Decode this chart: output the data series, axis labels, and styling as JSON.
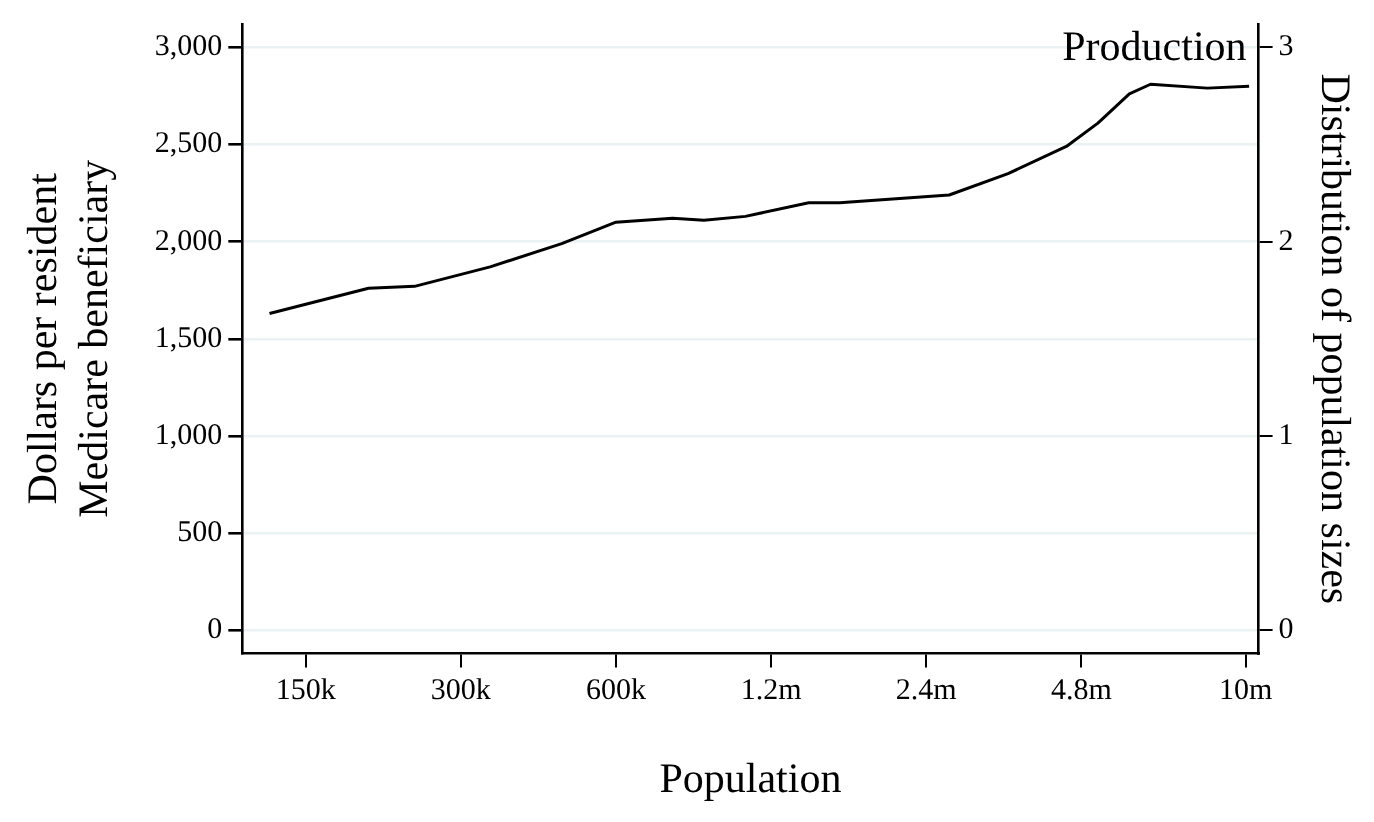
{
  "chart_data": {
    "type": "line",
    "title": "Production",
    "xlabel": "Population",
    "ylabel": "Dollars per resident\nMedicare beneficiary",
    "y2label": "Distribution of population sizes",
    "x": [
      127600,
      198600,
      244000,
      342000,
      471000,
      600000,
      773000,
      889000,
      1070000,
      1420000,
      1630000,
      2660000,
      3460000,
      4490000,
      5170000,
      5950000,
      6540000,
      8430000,
      10160000
    ],
    "series": [
      {
        "color": "#000000",
        "values": [
          1630,
          1760,
          1770,
          1870,
          1990,
          2100,
          2120,
          2110,
          2130,
          2200,
          2200,
          2240,
          2350,
          2490,
          2610,
          2760,
          2810,
          2790,
          2800
        ]
      }
    ],
    "log": "x",
    "xlim": [
      113000,
      10600000
    ],
    "xticks": [
      {
        "value": 150000,
        "label": "150k"
      },
      {
        "value": 300000,
        "label": "300k"
      },
      {
        "value": 600000,
        "label": "600k"
      },
      {
        "value": 1200000,
        "label": "1.2m"
      },
      {
        "value": 2400000,
        "label": "2.4m"
      },
      {
        "value": 4800000,
        "label": "4.8m"
      },
      {
        "value": 10000000,
        "label": "10m"
      }
    ],
    "ylim": [
      -120,
      3120
    ],
    "yticks": [
      0,
      500,
      {
        "value": 1000,
        "label": "1,000"
      },
      {
        "value": 1500,
        "label": "1,500"
      },
      {
        "value": 2000,
        "label": "2,000"
      },
      {
        "value": 2500,
        "label": "2,500"
      },
      {
        "value": 3000,
        "label": "3,000"
      }
    ],
    "y2lim": [
      -0.12,
      3.12
    ],
    "y2ticks": [
      0,
      1,
      2,
      3
    ],
    "grid": "y",
    "legend": false,
    "marker": "none",
    "line_style": "solid"
  }
}
